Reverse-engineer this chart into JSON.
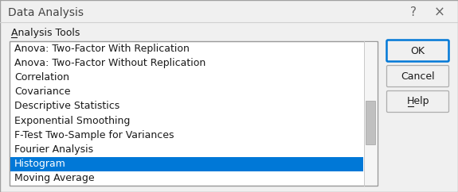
{
  "title": "Data Analysis",
  "question_mark": "?",
  "close_x": "×",
  "section_label": "Analysis Tools",
  "list_items": [
    "Anova: Two-Factor With Replication",
    "Anova: Two-Factor Without Replication",
    "Correlation",
    "Covariance",
    "Descriptive Statistics",
    "Exponential Smoothing",
    "F-Test Two-Sample for Variances",
    "Fourier Analysis",
    "Histogram",
    "Moving Average"
  ],
  "selected_item": "Histogram",
  "selected_index": 8,
  "buttons": [
    "OK",
    "Cancel",
    "Help"
  ],
  "bg_color": "#f0f0f0",
  "dialog_bg": "#f0f0f0",
  "listbox_bg": "#ffffff",
  "selected_bg": "#0078d7",
  "selected_fg": "#ffffff",
  "normal_fg": "#1a1a1a",
  "title_fg": "#444444",
  "section_fg": "#1a1a1a",
  "button_bg": "#f0f0f0",
  "button_border": "#adadad",
  "ok_button_border": "#0078d7",
  "scrollbar_color": "#c0c0c0",
  "title_fontsize": 10.0,
  "item_fontsize": 9.0,
  "button_fontsize": 9.0,
  "section_fontsize": 9.0
}
